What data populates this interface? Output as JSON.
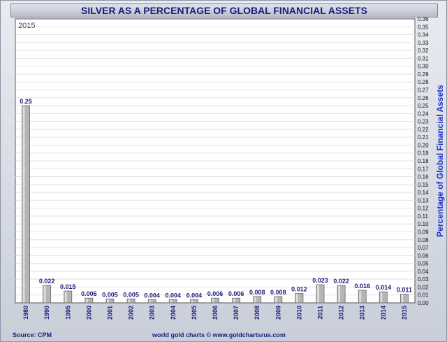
{
  "chart_data": {
    "type": "bar",
    "title": "SILVER AS A PERCENTAGE OF GLOBAL FINANCIAL ASSETS",
    "corner_label": "2015",
    "ylabel": "Percentage of Global Financial Assets",
    "categories": [
      "1980",
      "1990",
      "1995",
      "2000",
      "2001",
      "2002",
      "2003",
      "2004",
      "2005",
      "2006",
      "2007",
      "2008",
      "2009",
      "2010",
      "2011",
      "2012",
      "2013",
      "2014",
      "2015"
    ],
    "values": [
      0.25,
      0.022,
      0.015,
      0.006,
      0.005,
      0.005,
      0.004,
      0.004,
      0.004,
      0.006,
      0.006,
      0.008,
      0.008,
      0.012,
      0.023,
      0.022,
      0.016,
      0.014,
      0.011
    ],
    "data_labels": [
      "0.25",
      "0.022",
      "0.015",
      "0.006",
      "0.005",
      "0.005",
      "0.004",
      "0.004",
      "0.004",
      "0.006",
      "0.006",
      "0.008",
      "0.008",
      "0.012",
      "0.023",
      "0.022",
      "0.016",
      "0.014",
      "0.011"
    ],
    "ylim": [
      0,
      0.36
    ],
    "ytick_step": 0.01,
    "y_axis_side": "right",
    "grid": true,
    "bar_color": "#b5b5b5"
  },
  "footer": {
    "source": "Source: CPM",
    "credit": "world gold charts © www.goldchartsrus.com"
  }
}
